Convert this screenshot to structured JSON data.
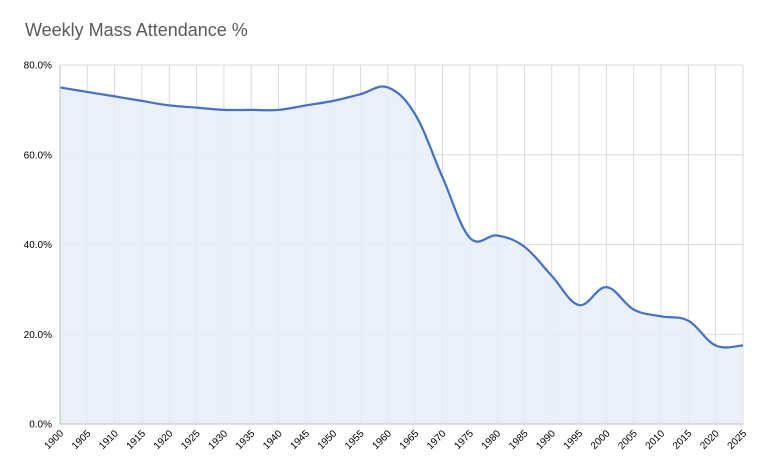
{
  "chart_data": {
    "type": "area",
    "title": "Weekly Mass Attendance %",
    "xlabel": "",
    "ylabel": "",
    "x": [
      1900,
      1905,
      1910,
      1915,
      1920,
      1925,
      1930,
      1935,
      1940,
      1945,
      1950,
      1955,
      1960,
      1965,
      1970,
      1975,
      1980,
      1985,
      1990,
      1995,
      2000,
      2005,
      2010,
      2015,
      2020,
      2025
    ],
    "values": [
      75,
      74,
      73,
      72,
      71,
      70.5,
      70,
      70,
      70,
      71,
      72,
      73.5,
      75,
      69,
      55,
      41.5,
      42,
      39.5,
      33,
      26.5,
      30.5,
      25.5,
      24,
      23,
      17.5,
      17.5
    ],
    "ylim": [
      0,
      80
    ],
    "yticks": [
      "0.0%",
      "20.0%",
      "40.0%",
      "60.0%",
      "80.0%"
    ],
    "grid": true,
    "legend": "none",
    "colors": {
      "line": "#4472C4",
      "fill": "#E8ECF7",
      "grid": "#D9D9D9",
      "title": "#595959"
    }
  }
}
